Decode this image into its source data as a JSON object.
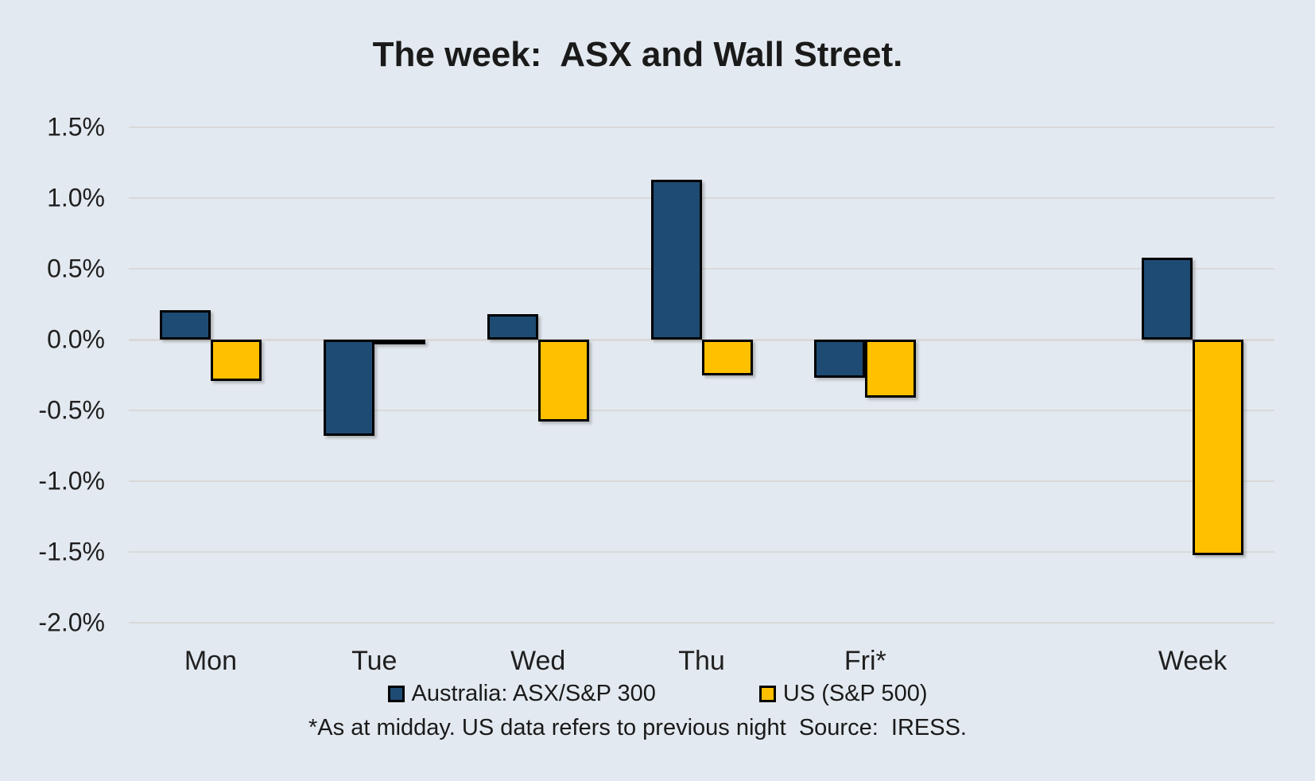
{
  "title": "The week:  ASX and Wall Street.",
  "footnote": "*As at midday. US data refers to previous night  Source:  IRESS.",
  "colors": {
    "background": "#E3E9F0",
    "gridline": "#D9D9D9",
    "zero_line": "#D9D9D9",
    "bar_outline": "#000000",
    "australia_blue": "#1E4B73",
    "us_gold": "#FFC000",
    "text": "#1A1A1A"
  },
  "legend": {
    "items": [
      {
        "label": "Australia: ASX/S&P 300",
        "color": "#1E4B73"
      },
      {
        "label": "US (S&P 500)",
        "color": "#FFC000"
      }
    ]
  },
  "y_axis": {
    "tick_labels": [
      "1.5%",
      "1.0%",
      "0.5%",
      "0.0%",
      "-0.5%",
      "-1.0%",
      "-1.5%",
      "-2.0%"
    ],
    "tick_values": [
      1.5,
      1.0,
      0.5,
      0.0,
      -0.5,
      -1.0,
      -1.5,
      -2.0
    ]
  },
  "chart_data": {
    "type": "bar",
    "title": "The week:  ASX and Wall Street.",
    "categories": [
      "Mon",
      "Tue",
      "Wed",
      "Thu",
      "Fri*",
      "",
      "Week"
    ],
    "series": [
      {
        "name": "Australia: ASX/S&P 300",
        "color": "#1E4B73",
        "values": [
          0.21,
          -0.68,
          0.18,
          1.13,
          -0.27,
          null,
          0.58
        ]
      },
      {
        "name": "US (S&P 500)",
        "color": "#FFC000",
        "values": [
          -0.29,
          -0.02,
          -0.58,
          -0.25,
          -0.41,
          null,
          -1.52
        ]
      }
    ],
    "unit": "%",
    "ylim": [
      -2.0,
      1.5
    ],
    "y_tick_step": 0.5,
    "grid": true,
    "legend_position": "bottom",
    "xlabel": "",
    "ylabel": ""
  }
}
